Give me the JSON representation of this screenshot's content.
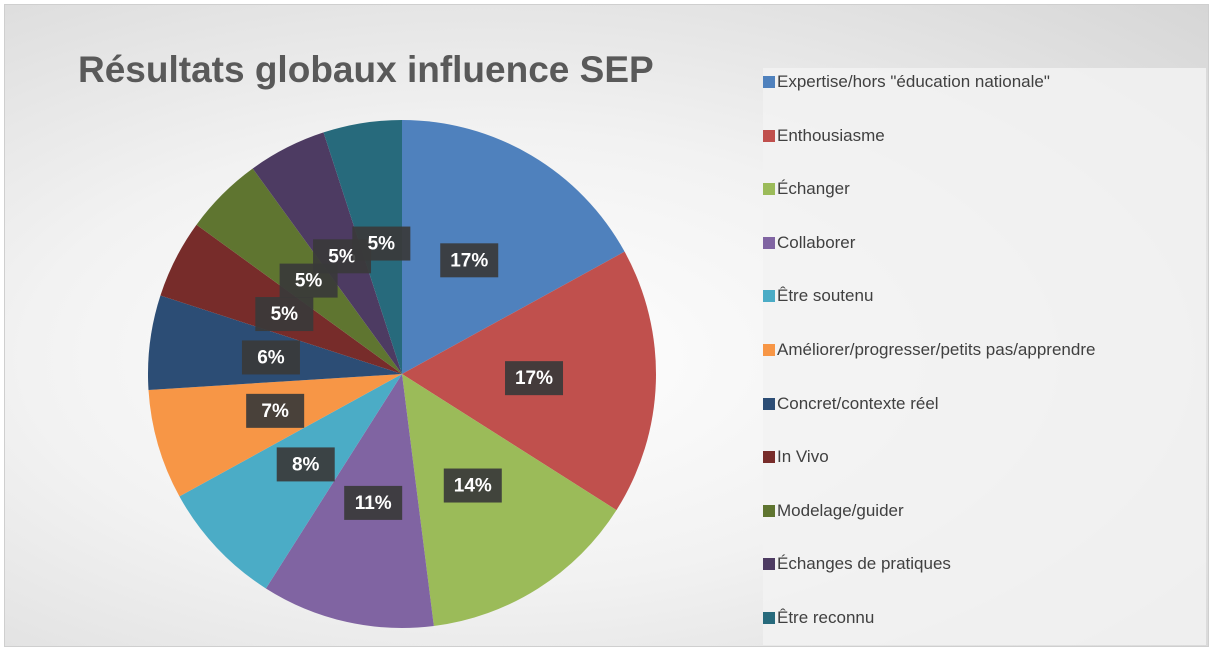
{
  "chart_data": {
    "type": "pie",
    "title": "Résultats globaux influence SEP",
    "categories": [
      "Expertise/hors \"éducation nationale\"",
      "Enthousiasme",
      "Échanger",
      "Collaborer",
      "Être soutenu",
      "Améliorer/progresser/petits pas/apprendre",
      "Concret/contexte réel",
      "In Vivo",
      "Modelage/guider",
      "Échanges de pratiques",
      "Être reconnu"
    ],
    "values": [
      17,
      17,
      14,
      11,
      8,
      7,
      6,
      5,
      5,
      5,
      5
    ],
    "value_labels": [
      "17%",
      "17%",
      "14%",
      "11%",
      "8%",
      "7%",
      "6%",
      "5%",
      "5%",
      "5%",
      "5%"
    ],
    "colors": [
      "#4f81bd",
      "#c0504d",
      "#9bbb59",
      "#8064a2",
      "#4bacc6",
      "#f79646",
      "#2c4d75",
      "#772c2a",
      "#5f7530",
      "#4d3b62",
      "#276a7c"
    ],
    "legend": "right"
  }
}
